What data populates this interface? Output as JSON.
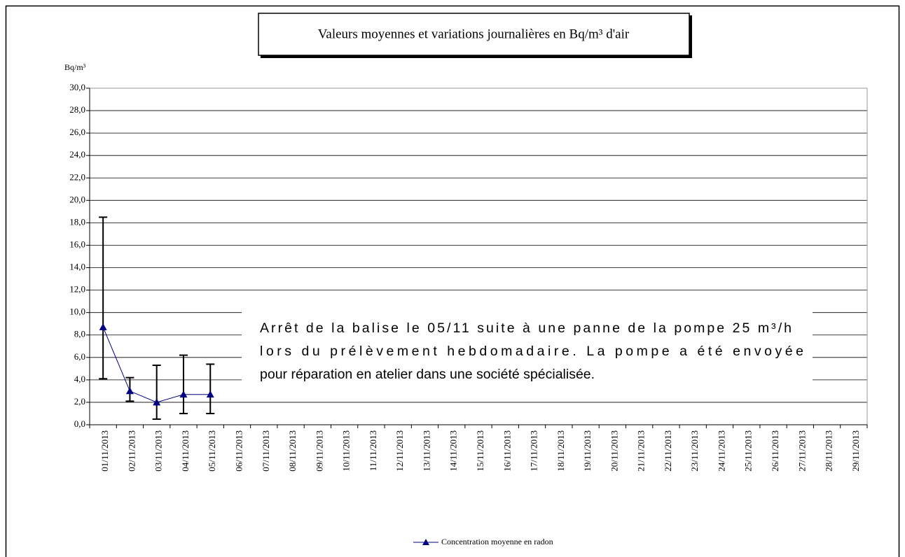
{
  "chart_data": {
    "type": "line",
    "title": "Valeurs moyennes et variations journalières en Bq/m³ d'air",
    "y_label": "Bq/m³",
    "annotation": [
      "Arrêt de la balise le 05/11 suite à une panne de la pompe 25 m³/h",
      "lors du prélèvement hebdomadaire. La pompe a été envoyée",
      "pour réparation en atelier dans une société spécialisée."
    ],
    "categories": [
      "01/11/2013",
      "02/11/2013",
      "03/11/2013",
      "04/11/2013",
      "05/11/2013",
      "06/11/2013",
      "07/11/2013",
      "08/11/2013",
      "09/11/2013",
      "10/11/2013",
      "11/11/2013",
      "12/11/2013",
      "13/11/2013",
      "14/11/2013",
      "15/11/2013",
      "16/11/2013",
      "17/11/2013",
      "18/11/2013",
      "19/11/2013",
      "20/11/2013",
      "21/11/2013",
      "22/11/2013",
      "23/11/2013",
      "24/11/2013",
      "25/11/2013",
      "26/11/2013",
      "27/11/2013",
      "28/11/2013",
      "29/11/2013"
    ],
    "series": [
      {
        "name": "Concentration moyenne en radon",
        "color": "#000080",
        "values": [
          8.7,
          3.0,
          2.0,
          2.7,
          2.7,
          null,
          null,
          null,
          null,
          null,
          null,
          null,
          null,
          null,
          null,
          null,
          null,
          null,
          null,
          null,
          null,
          null,
          null,
          null,
          null,
          null,
          null,
          null,
          null
        ],
        "min": [
          4.1,
          2.1,
          0.5,
          1.0,
          1.0,
          null,
          null,
          null,
          null,
          null,
          null,
          null,
          null,
          null,
          null,
          null,
          null,
          null,
          null,
          null,
          null,
          null,
          null,
          null,
          null,
          null,
          null,
          null,
          null
        ],
        "max": [
          18.5,
          4.2,
          5.3,
          6.2,
          5.4,
          null,
          null,
          null,
          null,
          null,
          null,
          null,
          null,
          null,
          null,
          null,
          null,
          null,
          null,
          null,
          null,
          null,
          null,
          null,
          null,
          null,
          null,
          null,
          null
        ]
      }
    ],
    "ylim": [
      0,
      30
    ],
    "yticks": [
      {
        "value": 0,
        "label": "0,0"
      },
      {
        "value": 2,
        "label": "2,0"
      },
      {
        "value": 4,
        "label": "4,0"
      },
      {
        "value": 6,
        "label": "6,0"
      },
      {
        "value": 8,
        "label": "8,0"
      },
      {
        "value": 10,
        "label": "10,0"
      },
      {
        "value": 12,
        "label": "12,0"
      },
      {
        "value": 14,
        "label": "14,0"
      },
      {
        "value": 16,
        "label": "16,0"
      },
      {
        "value": 18,
        "label": "18,0"
      },
      {
        "value": 20,
        "label": "20,0"
      },
      {
        "value": 22,
        "label": "22,0"
      },
      {
        "value": 24,
        "label": "24,0"
      },
      {
        "value": 26,
        "label": "26,0"
      },
      {
        "value": 28,
        "label": "28,0"
      },
      {
        "value": 30,
        "label": "30,0"
      }
    ],
    "grid": true,
    "legend": "bottom"
  }
}
